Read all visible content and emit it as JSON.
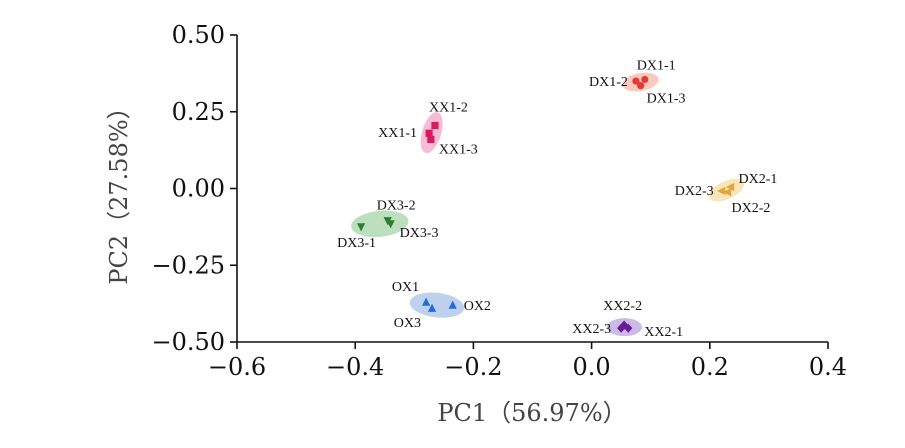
{
  "chart_data": {
    "type": "scatter",
    "title": "",
    "xlabel": "PC1（56.97%）",
    "ylabel": "PC2（27.58%）",
    "xlim": [
      -0.6,
      0.4
    ],
    "ylim": [
      -0.5,
      0.5
    ],
    "x_ticks": [
      -0.6,
      -0.4,
      -0.2,
      0.0,
      0.2,
      0.4
    ],
    "x_tick_labels": [
      "−0.6",
      "−0.4",
      "−0.2",
      "0.0",
      "0.2",
      "0.4"
    ],
    "y_ticks": [
      0.5,
      0.25,
      0.0,
      -0.25,
      -0.5
    ],
    "y_tick_labels": [
      "0.50",
      "0.25",
      "0.00",
      "−0.25",
      "−0.50"
    ],
    "grid": false,
    "legend": "none",
    "series": [
      {
        "color": "#d81b60",
        "ellipse_color": "#f4a6c6",
        "marker": "square",
        "points": [
          {
            "label": "XX1-1",
            "x": -0.275,
            "y": 0.18
          },
          {
            "label": "XX1-2",
            "x": -0.265,
            "y": 0.205
          },
          {
            "label": "XX1-3",
            "x": -0.272,
            "y": 0.16
          }
        ]
      },
      {
        "color": "#e53935",
        "ellipse_color": "#f8b8a8",
        "marker": "circle",
        "points": [
          {
            "label": "DX1-1",
            "x": 0.09,
            "y": 0.355
          },
          {
            "label": "DX1-2",
            "x": 0.075,
            "y": 0.35
          },
          {
            "label": "DX1-3",
            "x": 0.083,
            "y": 0.335
          }
        ]
      },
      {
        "color": "#e6a23c",
        "ellipse_color": "#f5dca0",
        "marker": "triangle-left",
        "points": [
          {
            "label": "DX2-1",
            "x": 0.235,
            "y": 0.005
          },
          {
            "label": "DX2-2",
            "x": 0.23,
            "y": -0.012
          },
          {
            "label": "DX2-3",
            "x": 0.22,
            "y": -0.008
          }
        ]
      },
      {
        "color": "#2e7d32",
        "ellipse_color": "#a5d6a7",
        "marker": "triangle-down",
        "points": [
          {
            "label": "DX3-1",
            "x": -0.39,
            "y": -0.125
          },
          {
            "label": "DX3-2",
            "x": -0.345,
            "y": -0.105
          },
          {
            "label": "DX3-3",
            "x": -0.34,
            "y": -0.115
          }
        ]
      },
      {
        "color": "#1e6fd9",
        "ellipse_color": "#a9c2e8",
        "marker": "triangle-up",
        "points": [
          {
            "label": "OX1",
            "x": -0.28,
            "y": -0.37
          },
          {
            "label": "OX2",
            "x": -0.235,
            "y": -0.38
          },
          {
            "label": "OX3",
            "x": -0.27,
            "y": -0.39
          }
        ]
      },
      {
        "color": "#6a1b9a",
        "ellipse_color": "#b9a4dc",
        "marker": "diamond",
        "points": [
          {
            "label": "XX2-1",
            "x": 0.062,
            "y": -0.455
          },
          {
            "label": "XX2-2",
            "x": 0.055,
            "y": -0.445
          },
          {
            "label": "XX2-3",
            "x": 0.05,
            "y": -0.455
          }
        ]
      }
    ]
  }
}
